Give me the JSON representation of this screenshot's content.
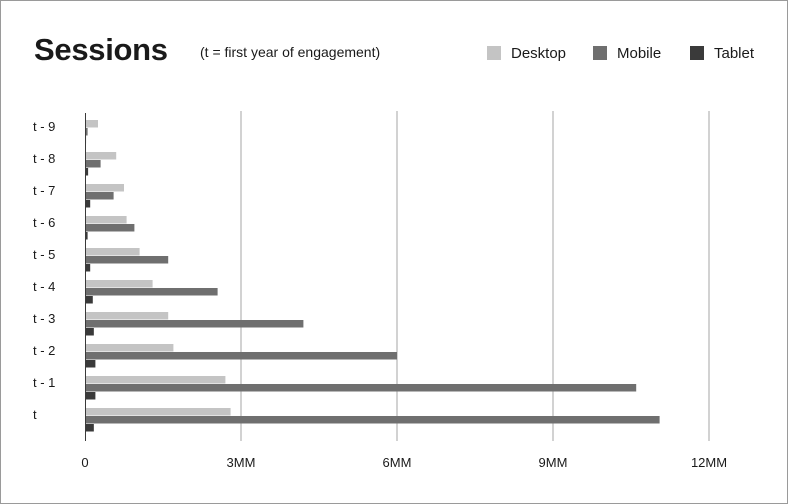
{
  "chart_data": {
    "type": "bar",
    "orientation": "horizontal",
    "title": "Sessions",
    "subtitle": "(t = first year of engagement)",
    "categories": [
      "t - 9",
      "t - 8",
      "t - 7",
      "t - 6",
      "t - 5",
      "t - 4",
      "t - 3",
      "t - 2",
      "t - 1",
      "t"
    ],
    "series": [
      {
        "name": "Desktop",
        "color": "#c4c4c4",
        "values": [
          250000,
          600000,
          750000,
          800000,
          1050000,
          1300000,
          1600000,
          1700000,
          2700000,
          2800000
        ]
      },
      {
        "name": "Mobile",
        "color": "#6f6f6f",
        "values": [
          50000,
          300000,
          550000,
          950000,
          1600000,
          2550000,
          4200000,
          6000000,
          10600000,
          11050000
        ]
      },
      {
        "name": "Tablet",
        "color": "#3a3a3a",
        "values": [
          20000,
          60000,
          100000,
          50000,
          100000,
          150000,
          170000,
          200000,
          200000,
          170000
        ]
      }
    ],
    "x_ticks": [
      0,
      3000000,
      6000000,
      9000000,
      12000000
    ],
    "x_tick_labels": [
      "0",
      "3MM",
      "6MM",
      "9MM",
      "12MM"
    ],
    "xlim": [
      0,
      12000000
    ],
    "xlabel": "",
    "ylabel": "",
    "grid": "vertical",
    "legend_position": "top-right"
  }
}
